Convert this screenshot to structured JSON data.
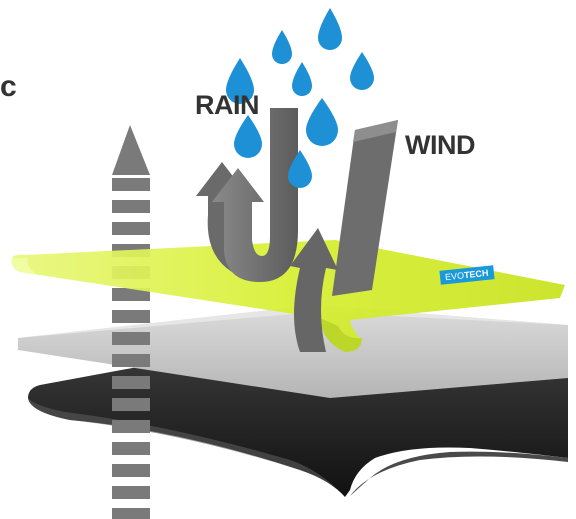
{
  "labels": {
    "rain": "RAIN",
    "wind": "WIND",
    "left_edge": "c"
  },
  "brand_badge": {
    "part1": "EVO",
    "part2": "TECH"
  },
  "colors": {
    "membrane_green": "#d9f03a",
    "middle_layer": "#c9c9c9",
    "bottom_layer": "#1f1f1f",
    "rain_drop": "#1e90d6",
    "arrow": "#6e6e6e",
    "badge": "#1a9ad8"
  },
  "icons": [
    "rain-drop-icon",
    "vapor-arrow-icon",
    "rain-arrow-icon",
    "wind-arrow-icon"
  ]
}
